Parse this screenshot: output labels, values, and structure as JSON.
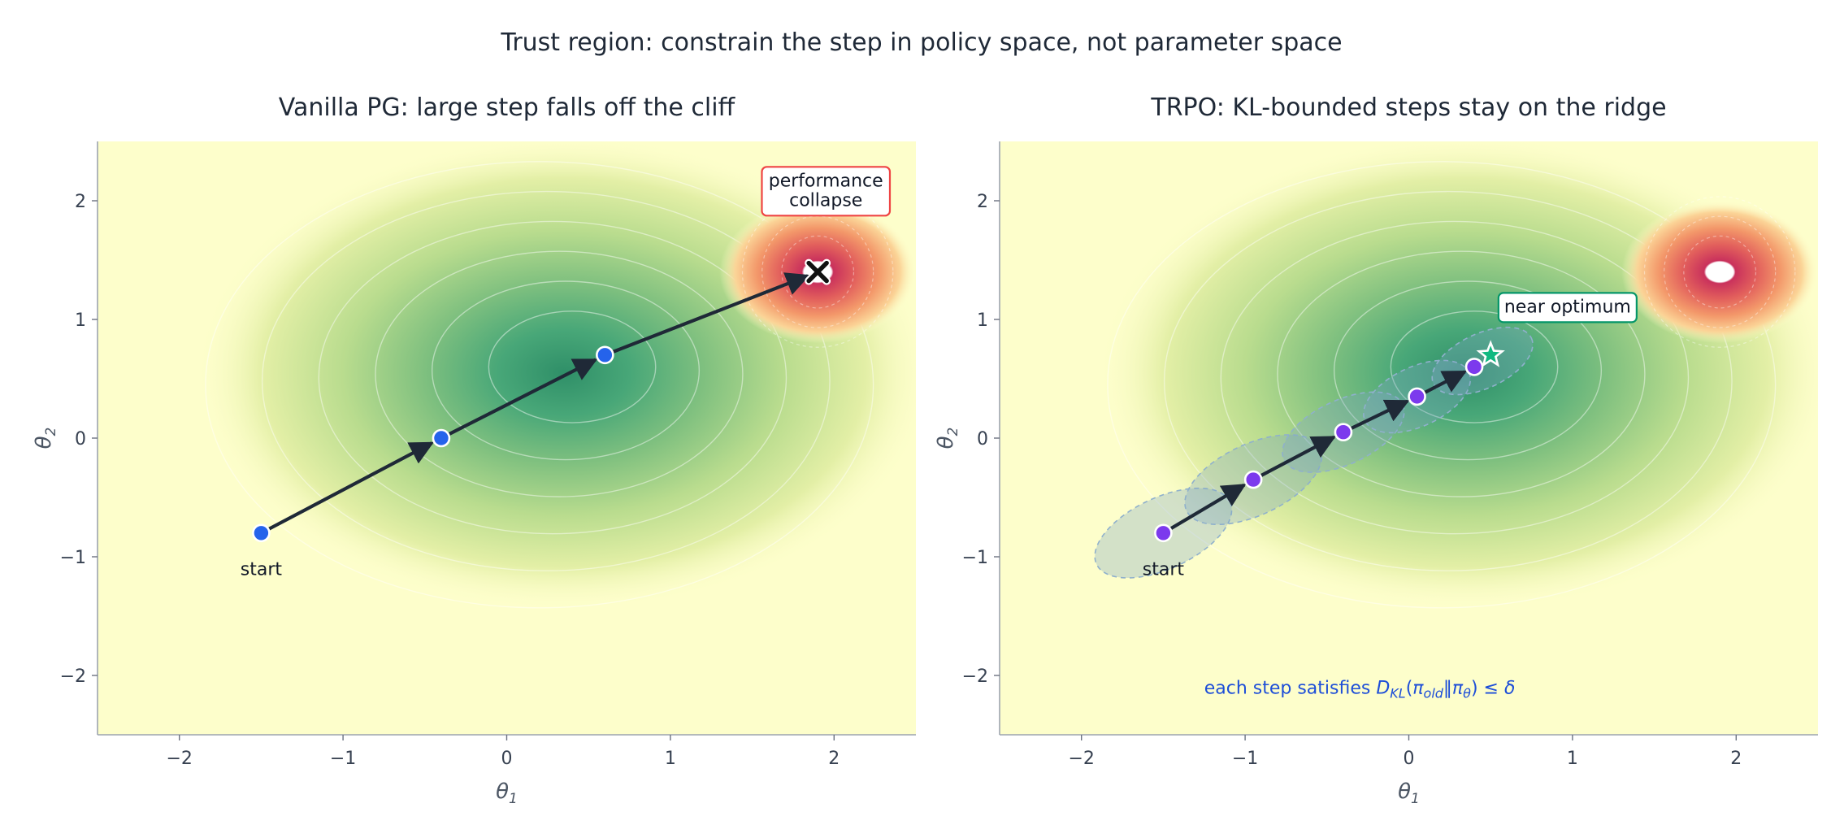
{
  "figure": {
    "suptitle": "Trust region: constrain the step in policy space, not parameter space"
  },
  "chart_data": [
    {
      "type": "contour",
      "title": "Vanilla PG: large step falls off the cliff",
      "xlabel": "θ",
      "xlabel_sub": "1",
      "ylabel": "θ",
      "ylabel_sub": "2",
      "xlim": [
        -2.5,
        2.5
      ],
      "ylim": [
        -2.5,
        2.5
      ],
      "xticks": [
        -2,
        -1,
        0,
        1,
        2
      ],
      "yticks": [
        -2,
        -1,
        0,
        1,
        2
      ],
      "tick_labels_x": [
        "−2",
        "−1",
        "0",
        "1",
        "2"
      ],
      "tick_labels_y": [
        "−2",
        "−1",
        "0",
        "1",
        "2"
      ],
      "surface": {
        "optimum": [
          0.4,
          0.6
        ],
        "cliff": [
          1.9,
          1.4
        ]
      },
      "path": [
        [
          -1.5,
          -0.8
        ],
        [
          -0.4,
          0.0
        ],
        [
          0.6,
          0.7
        ],
        [
          1.9,
          1.4
        ]
      ],
      "point_color": "#2563eb",
      "end_marker": "x-mark",
      "annotations": [
        {
          "text": "start",
          "x": -1.5,
          "y": -1.1
        },
        {
          "text": "performance\ncollapse",
          "x": 1.95,
          "y": 2.08,
          "box": true,
          "edge_color": "#ef4444"
        }
      ]
    },
    {
      "type": "contour",
      "title": "TRPO: KL-bounded steps stay on the ridge",
      "xlabel": "θ",
      "xlabel_sub": "1",
      "ylabel": "θ",
      "ylabel_sub": "2",
      "xlim": [
        -2.5,
        2.5
      ],
      "ylim": [
        -2.5,
        2.5
      ],
      "xticks": [
        -2,
        -1,
        0,
        1,
        2
      ],
      "yticks": [
        -2,
        -1,
        0,
        1,
        2
      ],
      "tick_labels_x": [
        "−2",
        "−1",
        "0",
        "1",
        "2"
      ],
      "tick_labels_y": [
        "−2",
        "−1",
        "0",
        "1",
        "2"
      ],
      "surface": {
        "optimum": [
          0.4,
          0.6
        ],
        "cliff": [
          1.9,
          1.4
        ]
      },
      "path": [
        [
          -1.5,
          -0.8
        ],
        [
          -0.95,
          -0.35
        ],
        [
          -0.4,
          0.05
        ],
        [
          0.05,
          0.35
        ],
        [
          0.4,
          0.6
        ]
      ],
      "point_color": "#7c3aed",
      "end_marker": "star-icon",
      "end_marker_pos": [
        0.5,
        0.7
      ],
      "trust_regions": [
        {
          "cx": -1.5,
          "cy": -0.8,
          "rx": 0.45,
          "ry": 0.3,
          "angle": 25
        },
        {
          "cx": -0.95,
          "cy": -0.35,
          "rx": 0.45,
          "ry": 0.3,
          "angle": 25
        },
        {
          "cx": -0.4,
          "cy": 0.05,
          "rx": 0.4,
          "ry": 0.27,
          "angle": 25
        },
        {
          "cx": 0.05,
          "cy": 0.35,
          "rx": 0.35,
          "ry": 0.25,
          "angle": 25
        },
        {
          "cx": 0.45,
          "cy": 0.65,
          "rx": 0.33,
          "ry": 0.23,
          "angle": 25
        }
      ],
      "annotations": [
        {
          "text": "start",
          "x": -1.5,
          "y": -1.1
        },
        {
          "text": "near optimum",
          "x": 0.97,
          "y": 1.1,
          "box": true,
          "edge_color": "#059669"
        }
      ],
      "note": {
        "prefix": "each step satisfies ",
        "kl_main": "D",
        "kl_sub": "KL",
        "open": "(",
        "pi1": "π",
        "pi1_sub": "old",
        "sep": "‖",
        "pi2": "π",
        "pi2_sub": "θ",
        "close": ") ≤ ",
        "delta": "δ",
        "x": -0.3,
        "y": -2.1
      }
    }
  ]
}
